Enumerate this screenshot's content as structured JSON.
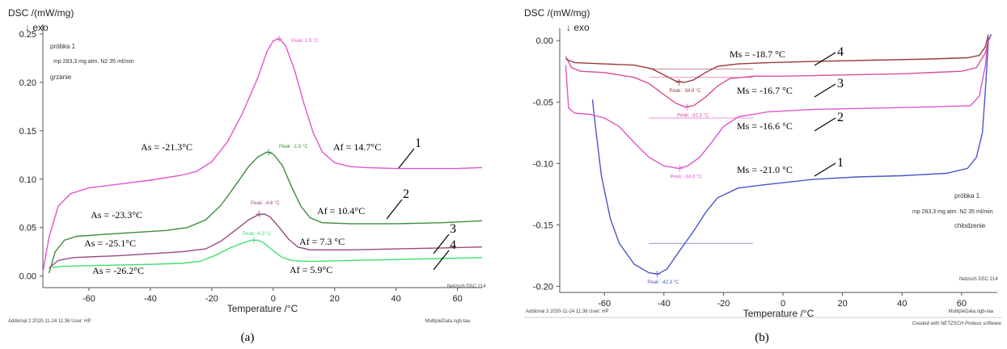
{
  "chart_data": [
    {
      "panel": "a",
      "type": "line",
      "caption": "(a)",
      "ylabel": "DSC /(mW/mg)",
      "exo_label": "↓ exo",
      "xlabel": "Temperature /°C",
      "xlim": [
        -75,
        68
      ],
      "ylim": [
        -0.012,
        0.26
      ],
      "xticks": [
        -60,
        -40,
        -20,
        0,
        20,
        40,
        60
      ],
      "yticks": [
        0.0,
        0.05,
        0.1,
        0.15,
        0.2,
        0.25
      ],
      "ytick_labels": [
        "0.00",
        "0.05",
        "0.10",
        "0.15",
        "0.20",
        "0.25"
      ],
      "info_lines": [
        "próbka 1",
        "mp 283,3 mg atm. N2 35 ml/min",
        "grzanie"
      ],
      "footer_left": "Addional 2   2020-11-24 11:36   User: HP",
      "footer_right": "MultipleData.ngb-taa",
      "instrument": "Netzsch DSC 214",
      "grid": false,
      "series": [
        {
          "id": "1",
          "color": "#e055d0",
          "baseline": [
            [
              -75,
              0.004
            ],
            [
              -73,
              0.04
            ],
            [
              -70,
              0.072
            ],
            [
              -66,
              0.085
            ],
            [
              -60,
              0.091
            ],
            [
              -50,
              0.095
            ],
            [
              -40,
              0.099
            ],
            [
              -30,
              0.104
            ],
            [
              -25,
              0.108
            ],
            [
              -20,
              0.118
            ],
            [
              -15,
              0.138
            ],
            [
              -10,
              0.168
            ],
            [
              -5,
              0.205
            ],
            [
              -2,
              0.232
            ],
            [
              0,
              0.243
            ],
            [
              2,
              0.245
            ],
            [
              4,
              0.238
            ],
            [
              7,
              0.212
            ],
            [
              10,
              0.178
            ],
            [
              13,
              0.148
            ],
            [
              16,
              0.128
            ],
            [
              20,
              0.117
            ],
            [
              25,
              0.113
            ],
            [
              30,
              0.112
            ],
            [
              40,
              0.111
            ],
            [
              50,
              0.111
            ],
            [
              60,
              0.111
            ],
            [
              68,
              0.112
            ]
          ],
          "peak_label": "Peak: 1.9 °C",
          "peak_x": 1.9,
          "peak_y": 0.245,
          "onset_label": "As = -21.3°C",
          "end_label": "Af = 14.7°C"
        },
        {
          "id": "2",
          "color": "#3a8f3a",
          "baseline": [
            [
              -73,
              0.003
            ],
            [
              -71,
              0.025
            ],
            [
              -68,
              0.037
            ],
            [
              -64,
              0.041
            ],
            [
              -55,
              0.043
            ],
            [
              -45,
              0.045
            ],
            [
              -35,
              0.047
            ],
            [
              -28,
              0.05
            ],
            [
              -22,
              0.058
            ],
            [
              -17,
              0.073
            ],
            [
              -12,
              0.095
            ],
            [
              -8,
              0.113
            ],
            [
              -5,
              0.123
            ],
            [
              -2,
              0.128
            ],
            [
              0,
              0.126
            ],
            [
              3,
              0.114
            ],
            [
              6,
              0.092
            ],
            [
              9,
              0.072
            ],
            [
              12,
              0.06
            ],
            [
              16,
              0.055
            ],
            [
              25,
              0.054
            ],
            [
              40,
              0.054
            ],
            [
              55,
              0.055
            ],
            [
              68,
              0.057
            ]
          ],
          "peak_label": "Peak: -1.5 °C",
          "peak_x": -1.5,
          "peak_y": 0.128,
          "onset_label": "As = -23.3°C",
          "end_label": "Af = 10.4°C"
        },
        {
          "id": "3",
          "color": "#9b4a7d",
          "baseline": [
            [
              -73,
              0.008
            ],
            [
              -70,
              0.016
            ],
            [
              -65,
              0.019
            ],
            [
              -50,
              0.021
            ],
            [
              -40,
              0.023
            ],
            [
              -30,
              0.025
            ],
            [
              -22,
              0.028
            ],
            [
              -17,
              0.036
            ],
            [
              -12,
              0.048
            ],
            [
              -8,
              0.058
            ],
            [
              -5,
              0.063
            ],
            [
              -3,
              0.064
            ],
            [
              -1,
              0.061
            ],
            [
              2,
              0.05
            ],
            [
              5,
              0.038
            ],
            [
              8,
              0.03
            ],
            [
              12,
              0.027
            ],
            [
              25,
              0.027
            ],
            [
              40,
              0.028
            ],
            [
              55,
              0.029
            ],
            [
              68,
              0.03
            ]
          ],
          "peak_label": "Peak: -4.6 °C",
          "peak_x": -4.6,
          "peak_y": 0.064,
          "onset_label": "As = -25.1°C",
          "end_label": "Af = 7.3 °C"
        },
        {
          "id": "4",
          "color": "#3ee070",
          "baseline": [
            [
              -72,
              0.009
            ],
            [
              -68,
              0.01
            ],
            [
              -55,
              0.011
            ],
            [
              -40,
              0.012
            ],
            [
              -30,
              0.013
            ],
            [
              -24,
              0.015
            ],
            [
              -19,
              0.021
            ],
            [
              -14,
              0.029
            ],
            [
              -10,
              0.034
            ],
            [
              -7,
              0.037
            ],
            [
              -5,
              0.037
            ],
            [
              -3,
              0.034
            ],
            [
              0,
              0.026
            ],
            [
              3,
              0.019
            ],
            [
              6,
              0.016
            ],
            [
              12,
              0.015
            ],
            [
              25,
              0.016
            ],
            [
              40,
              0.017
            ],
            [
              55,
              0.018
            ],
            [
              68,
              0.019
            ]
          ],
          "peak_label": "Peak: -6.3 °C",
          "peak_x": -6.3,
          "peak_y": 0.037,
          "onset_label": "As = -26.2°C",
          "end_label": "Af = 5.9°C"
        }
      ]
    },
    {
      "panel": "b",
      "type": "line",
      "caption": "(b)",
      "ylabel": "DSC /(mW/mg)",
      "exo_label": "↓ exo",
      "xlabel": "Temperature /°C",
      "xlim": [
        -75,
        72
      ],
      "ylim": [
        -0.205,
        0.01
      ],
      "xticks": [
        -60,
        -40,
        -20,
        0,
        20,
        40,
        60
      ],
      "yticks": [
        0.0,
        -0.05,
        -0.1,
        -0.15,
        -0.2
      ],
      "ytick_labels": [
        "0.00",
        "-0.05",
        "-0.10",
        "-0.15",
        "-0.20"
      ],
      "info_lines": [
        "próbka 1",
        "mp 283,3 mg atm. N2 35 ml/min",
        "chłodzenie"
      ],
      "footer_left": "Addional 3   2020-11-24 11:36   User: HP",
      "footer_right": "MultipleData.ngb-taa",
      "footer_credit": "Created with NETZSCH Proteus software",
      "instrument": "Netzsch DSC 214",
      "grid": false,
      "series": [
        {
          "id": "1",
          "color": "#4a55c8",
          "baseline": [
            [
              -64,
              -0.048
            ],
            [
              -63,
              -0.07
            ],
            [
              -61,
              -0.11
            ],
            [
              -58,
              -0.145
            ],
            [
              -55,
              -0.165
            ],
            [
              -50,
              -0.182
            ],
            [
              -45,
              -0.189
            ],
            [
              -42,
              -0.19
            ],
            [
              -39,
              -0.186
            ],
            [
              -35,
              -0.172
            ],
            [
              -30,
              -0.155
            ],
            [
              -26,
              -0.14
            ],
            [
              -22,
              -0.128
            ],
            [
              -15,
              -0.12
            ],
            [
              -5,
              -0.117
            ],
            [
              10,
              -0.113
            ],
            [
              25,
              -0.111
            ],
            [
              40,
              -0.11
            ],
            [
              55,
              -0.108
            ],
            [
              62,
              -0.104
            ],
            [
              65,
              -0.095
            ],
            [
              67,
              -0.075
            ],
            [
              68,
              -0.04
            ],
            [
              69,
              0.0
            ],
            [
              70,
              0.005
            ]
          ],
          "peak_label": "Peak: -42.3 °C",
          "peak_x": -42.3,
          "peak_y": -0.19,
          "ms_label": "Ms = -21.0 °C"
        },
        {
          "id": "2",
          "color": "#e055d0",
          "baseline": [
            [
              -73,
              -0.02
            ],
            [
              -72,
              -0.055
            ],
            [
              -70,
              -0.059
            ],
            [
              -65,
              -0.06
            ],
            [
              -60,
              -0.063
            ],
            [
              -55,
              -0.07
            ],
            [
              -50,
              -0.083
            ],
            [
              -45,
              -0.095
            ],
            [
              -40,
              -0.102
            ],
            [
              -35,
              -0.104
            ],
            [
              -32,
              -0.102
            ],
            [
              -28,
              -0.095
            ],
            [
              -24,
              -0.083
            ],
            [
              -20,
              -0.07
            ],
            [
              -15,
              -0.062
            ],
            [
              -5,
              -0.058
            ],
            [
              10,
              -0.056
            ],
            [
              30,
              -0.055
            ],
            [
              50,
              -0.054
            ],
            [
              63,
              -0.053
            ],
            [
              66,
              -0.045
            ],
            [
              68,
              -0.02
            ],
            [
              69,
              0.003
            ]
          ],
          "peak_label": "Peak: -34.6 °C",
          "peak_x": -34.6,
          "peak_y": -0.104,
          "ms_label": "Ms = -16.6 °C"
        },
        {
          "id": "3",
          "color": "#d94f98",
          "baseline": [
            [
              -73,
              -0.013
            ],
            [
              -71,
              -0.022
            ],
            [
              -68,
              -0.025
            ],
            [
              -60,
              -0.026
            ],
            [
              -50,
              -0.03
            ],
            [
              -45,
              -0.035
            ],
            [
              -40,
              -0.044
            ],
            [
              -36,
              -0.051
            ],
            [
              -33,
              -0.054
            ],
            [
              -30,
              -0.053
            ],
            [
              -26,
              -0.046
            ],
            [
              -22,
              -0.037
            ],
            [
              -18,
              -0.031
            ],
            [
              -10,
              -0.029
            ],
            [
              0,
              -0.029
            ],
            [
              20,
              -0.028
            ],
            [
              40,
              -0.027
            ],
            [
              60,
              -0.025
            ],
            [
              65,
              -0.022
            ],
            [
              68,
              -0.01
            ],
            [
              69,
              0.0
            ]
          ],
          "peak_label": "Peak: -32.3 °C",
          "peak_x": -32.3,
          "peak_y": -0.054,
          "ms_label": "Ms = -16.7 °C"
        },
        {
          "id": "4",
          "color": "#9c3a3a",
          "baseline": [
            [
              -73,
              -0.015
            ],
            [
              -70,
              -0.018
            ],
            [
              -60,
              -0.019
            ],
            [
              -50,
              -0.02
            ],
            [
              -44,
              -0.023
            ],
            [
              -40,
              -0.028
            ],
            [
              -36,
              -0.033
            ],
            [
              -33,
              -0.034
            ],
            [
              -30,
              -0.032
            ],
            [
              -26,
              -0.026
            ],
            [
              -22,
              -0.021
            ],
            [
              -15,
              -0.019
            ],
            [
              -5,
              -0.018
            ],
            [
              10,
              -0.017
            ],
            [
              30,
              -0.016
            ],
            [
              50,
              -0.015
            ],
            [
              62,
              -0.014
            ],
            [
              66,
              -0.012
            ],
            [
              68,
              -0.005
            ],
            [
              69,
              0.005
            ]
          ],
          "peak_label": "Peak: -34.9 °C",
          "peak_x": -34.9,
          "peak_y": -0.034,
          "ms_label": "Ms = -18.7 °C"
        }
      ]
    }
  ]
}
